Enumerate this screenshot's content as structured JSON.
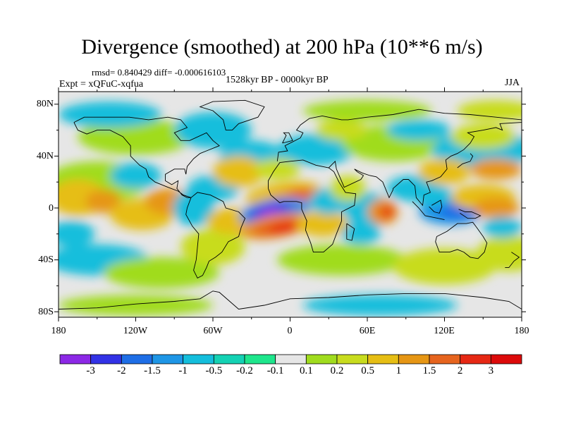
{
  "title": "Divergence (smoothed) at 200 hPa (10**6 m/s)",
  "stats": "rmsd= 0.840429 diff= -0.000616103",
  "experiment": "Expt = xQFuC-xqfua",
  "period": "1528kyr BP - 0000kyr BP",
  "season": "JJA",
  "lat_labels": [
    "80N",
    "40N",
    "0",
    "40S",
    "80S"
  ],
  "lon_labels": [
    "180",
    "120W",
    "60W",
    "0",
    "60E",
    "120E",
    "180"
  ],
  "colorbar": {
    "labels": [
      "-3",
      "-2",
      "-1.5",
      "-1",
      "-0.5",
      "-0.2",
      "-0.1",
      "0.1",
      "0.2",
      "0.5",
      "1",
      "1.5",
      "2",
      "3"
    ],
    "colors": [
      "#8c28e6",
      "#3232e6",
      "#1e6ee6",
      "#1e96e6",
      "#14bedc",
      "#14d2b4",
      "#1ee68c",
      "#e6e6e6",
      "#a0dc1e",
      "#c8dc1e",
      "#e6be14",
      "#e69614",
      "#e6641e",
      "#e62814",
      "#dc0a0a"
    ]
  },
  "map_data": {
    "variable": "Divergence (smoothed) at 200 hPa",
    "units": "10**6 m/s",
    "lat_range": [
      -90,
      90
    ],
    "lon_range": [
      -180,
      180
    ],
    "features": [
      {
        "name": "strong-convergence-west-africa",
        "lat": -3,
        "lon": -15,
        "value": -3
      },
      {
        "name": "divergence-tropical-atlantic-south",
        "lat": -12,
        "lon": -10,
        "value": 2
      },
      {
        "name": "divergence-north-africa",
        "lat": 8,
        "lon": 5,
        "value": 1.5
      },
      {
        "name": "divergence-indian-ocean",
        "lat": -3,
        "lon": 70,
        "value": 2
      },
      {
        "name": "convergence-maritime-continent",
        "lat": -3,
        "lon": 130,
        "value": -1.5
      },
      {
        "name": "divergence-tropical-pacific",
        "lat": 5,
        "lon": -160,
        "value": 1
      }
    ]
  }
}
